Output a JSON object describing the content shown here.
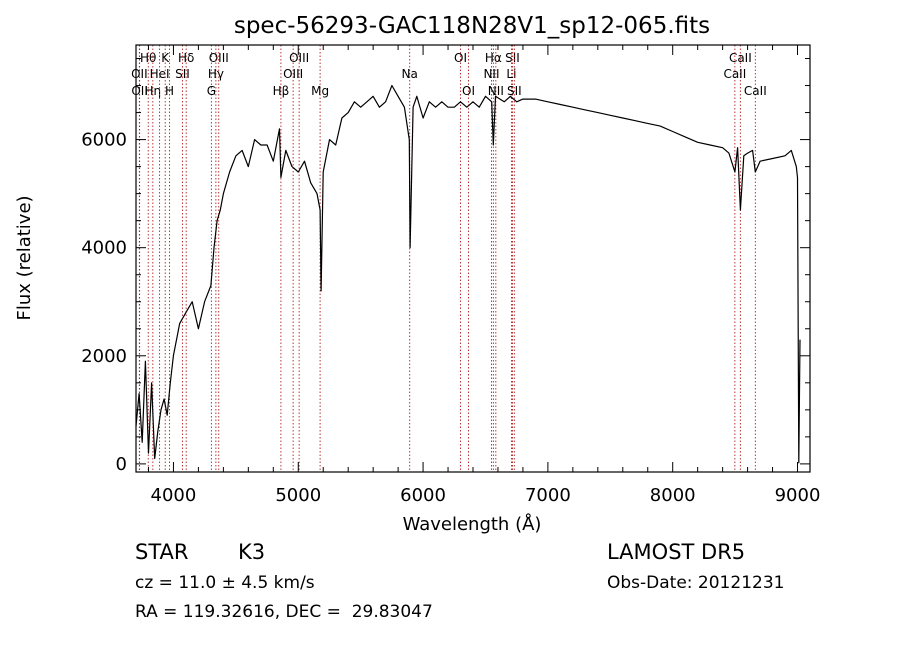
{
  "chart_data": {
    "type": "line",
    "title": "spec-56293-GAC118N28V1_sp12-065.fits",
    "xlabel": "Wavelength (Å)",
    "ylabel": "Flux (relative)",
    "xlim": [
      3700,
      9100
    ],
    "ylim": [
      -150,
      7750
    ],
    "xticks": [
      4000,
      5000,
      6000,
      7000,
      8000,
      9000
    ],
    "yticks": [
      0,
      2000,
      4000,
      6000
    ],
    "grid": false,
    "series": [
      {
        "x": [
          3700,
          3725,
          3750,
          3775,
          3800,
          3825,
          3850,
          3875,
          3900,
          3925,
          3950,
          3975,
          4000,
          4050,
          4100,
          4150,
          4200,
          4250,
          4300,
          4325,
          4350,
          4375,
          4400,
          4450,
          4500,
          4550,
          4600,
          4650,
          4700,
          4750,
          4800,
          4850,
          4861,
          4900,
          4950,
          5000,
          5050,
          5100,
          5150,
          5175,
          5183,
          5200,
          5250,
          5300,
          5350,
          5400,
          5450,
          5500,
          5550,
          5600,
          5650,
          5700,
          5750,
          5800,
          5850,
          5890,
          5896,
          5920,
          5950,
          6000,
          6050,
          6100,
          6150,
          6200,
          6250,
          6300,
          6350,
          6400,
          6450,
          6500,
          6550,
          6563,
          6580,
          6650,
          6700,
          6750,
          6800,
          6900,
          7000,
          7100,
          7200,
          7300,
          7400,
          7500,
          7600,
          7700,
          7800,
          7900,
          8000,
          8100,
          8200,
          8300,
          8400,
          8450,
          8498,
          8520,
          8542,
          8570,
          8600,
          8640,
          8662,
          8700,
          8800,
          8900,
          8950,
          8990,
          9000,
          9010,
          9020
        ],
        "y": [
          700,
          1300,
          400,
          1900,
          200,
          1500,
          100,
          600,
          1000,
          1200,
          900,
          1500,
          2000,
          2600,
          2800,
          3000,
          2500,
          3000,
          3300,
          4000,
          4500,
          4700,
          5000,
          5400,
          5700,
          5800,
          5500,
          6000,
          5900,
          5900,
          5600,
          6200,
          5300,
          5800,
          5500,
          5400,
          5600,
          5200,
          5000,
          4700,
          3200,
          5400,
          6000,
          5900,
          6400,
          6500,
          6700,
          6600,
          6700,
          6800,
          6600,
          6700,
          7000,
          6800,
          6600,
          6000,
          4000,
          6600,
          6800,
          6400,
          6700,
          6600,
          6700,
          6600,
          6600,
          6700,
          6600,
          6700,
          6600,
          6800,
          6700,
          5900,
          6800,
          6700,
          6800,
          6700,
          6750,
          6750,
          6700,
          6650,
          6600,
          6550,
          6500,
          6450,
          6400,
          6350,
          6300,
          6250,
          6150,
          6050,
          5950,
          5900,
          5850,
          5750,
          5400,
          5850,
          4700,
          5700,
          5750,
          5800,
          5400,
          5600,
          5650,
          5700,
          5800,
          5500,
          5300,
          20,
          2300
        ]
      }
    ],
    "lines": [
      {
        "label": "Hθ",
        "x": 3798,
        "row": 1
      },
      {
        "label": "OII",
        "x": 3727,
        "row": 2
      },
      {
        "label": "OII",
        "x": 3729,
        "row": 3
      },
      {
        "label": "Hη",
        "x": 3835,
        "row": 3
      },
      {
        "label": "HeI",
        "x": 3889,
        "row": 2
      },
      {
        "label": "K",
        "x": 3934,
        "row": 1
      },
      {
        "label": "H",
        "x": 3969,
        "row": 3
      },
      {
        "label": "Hδ",
        "x": 4102,
        "row": 1
      },
      {
        "label": "SII",
        "x": 4072,
        "row": 2
      },
      {
        "label": "OIII",
        "x": 4363,
        "row": 1
      },
      {
        "label": "Hγ",
        "x": 4340,
        "row": 2
      },
      {
        "label": "G",
        "x": 4304,
        "row": 3
      },
      {
        "label": "Hβ",
        "x": 4861,
        "row": 3
      },
      {
        "label": "OIII",
        "x": 5007,
        "row": 1
      },
      {
        "label": "OIII",
        "x": 4959,
        "row": 2
      },
      {
        "label": "Mg",
        "x": 5175,
        "row": 3
      },
      {
        "label": "Na",
        "x": 5893,
        "row": 2
      },
      {
        "label": "OI",
        "x": 6300,
        "row": 1
      },
      {
        "label": "OI",
        "x": 6364,
        "row": 3
      },
      {
        "label": "Hα",
        "x": 6563,
        "row": 1
      },
      {
        "label": "NII",
        "x": 6548,
        "row": 2
      },
      {
        "label": "NII",
        "x": 6583,
        "row": 3
      },
      {
        "label": "SII",
        "x": 6716,
        "row": 1
      },
      {
        "label": "Li",
        "x": 6708,
        "row": 2
      },
      {
        "label": "SII",
        "x": 6731,
        "row": 3
      },
      {
        "label": "CaII",
        "x": 8542,
        "row": 1
      },
      {
        "label": "CaII",
        "x": 8498,
        "row": 2
      },
      {
        "label": "CaII",
        "x": 8662,
        "row": 3
      }
    ]
  },
  "info": {
    "class": "STAR",
    "subclass": "K3",
    "survey": "LAMOST DR5",
    "cz": "cz = 11.0 ± 4.5 km/s",
    "obs_date": "Obs-Date: 20121231",
    "coords": "RA = 119.32616, DEC =  29.83047"
  },
  "colors": {
    "spectrum": "#000000",
    "line_markers": "#b22222"
  }
}
